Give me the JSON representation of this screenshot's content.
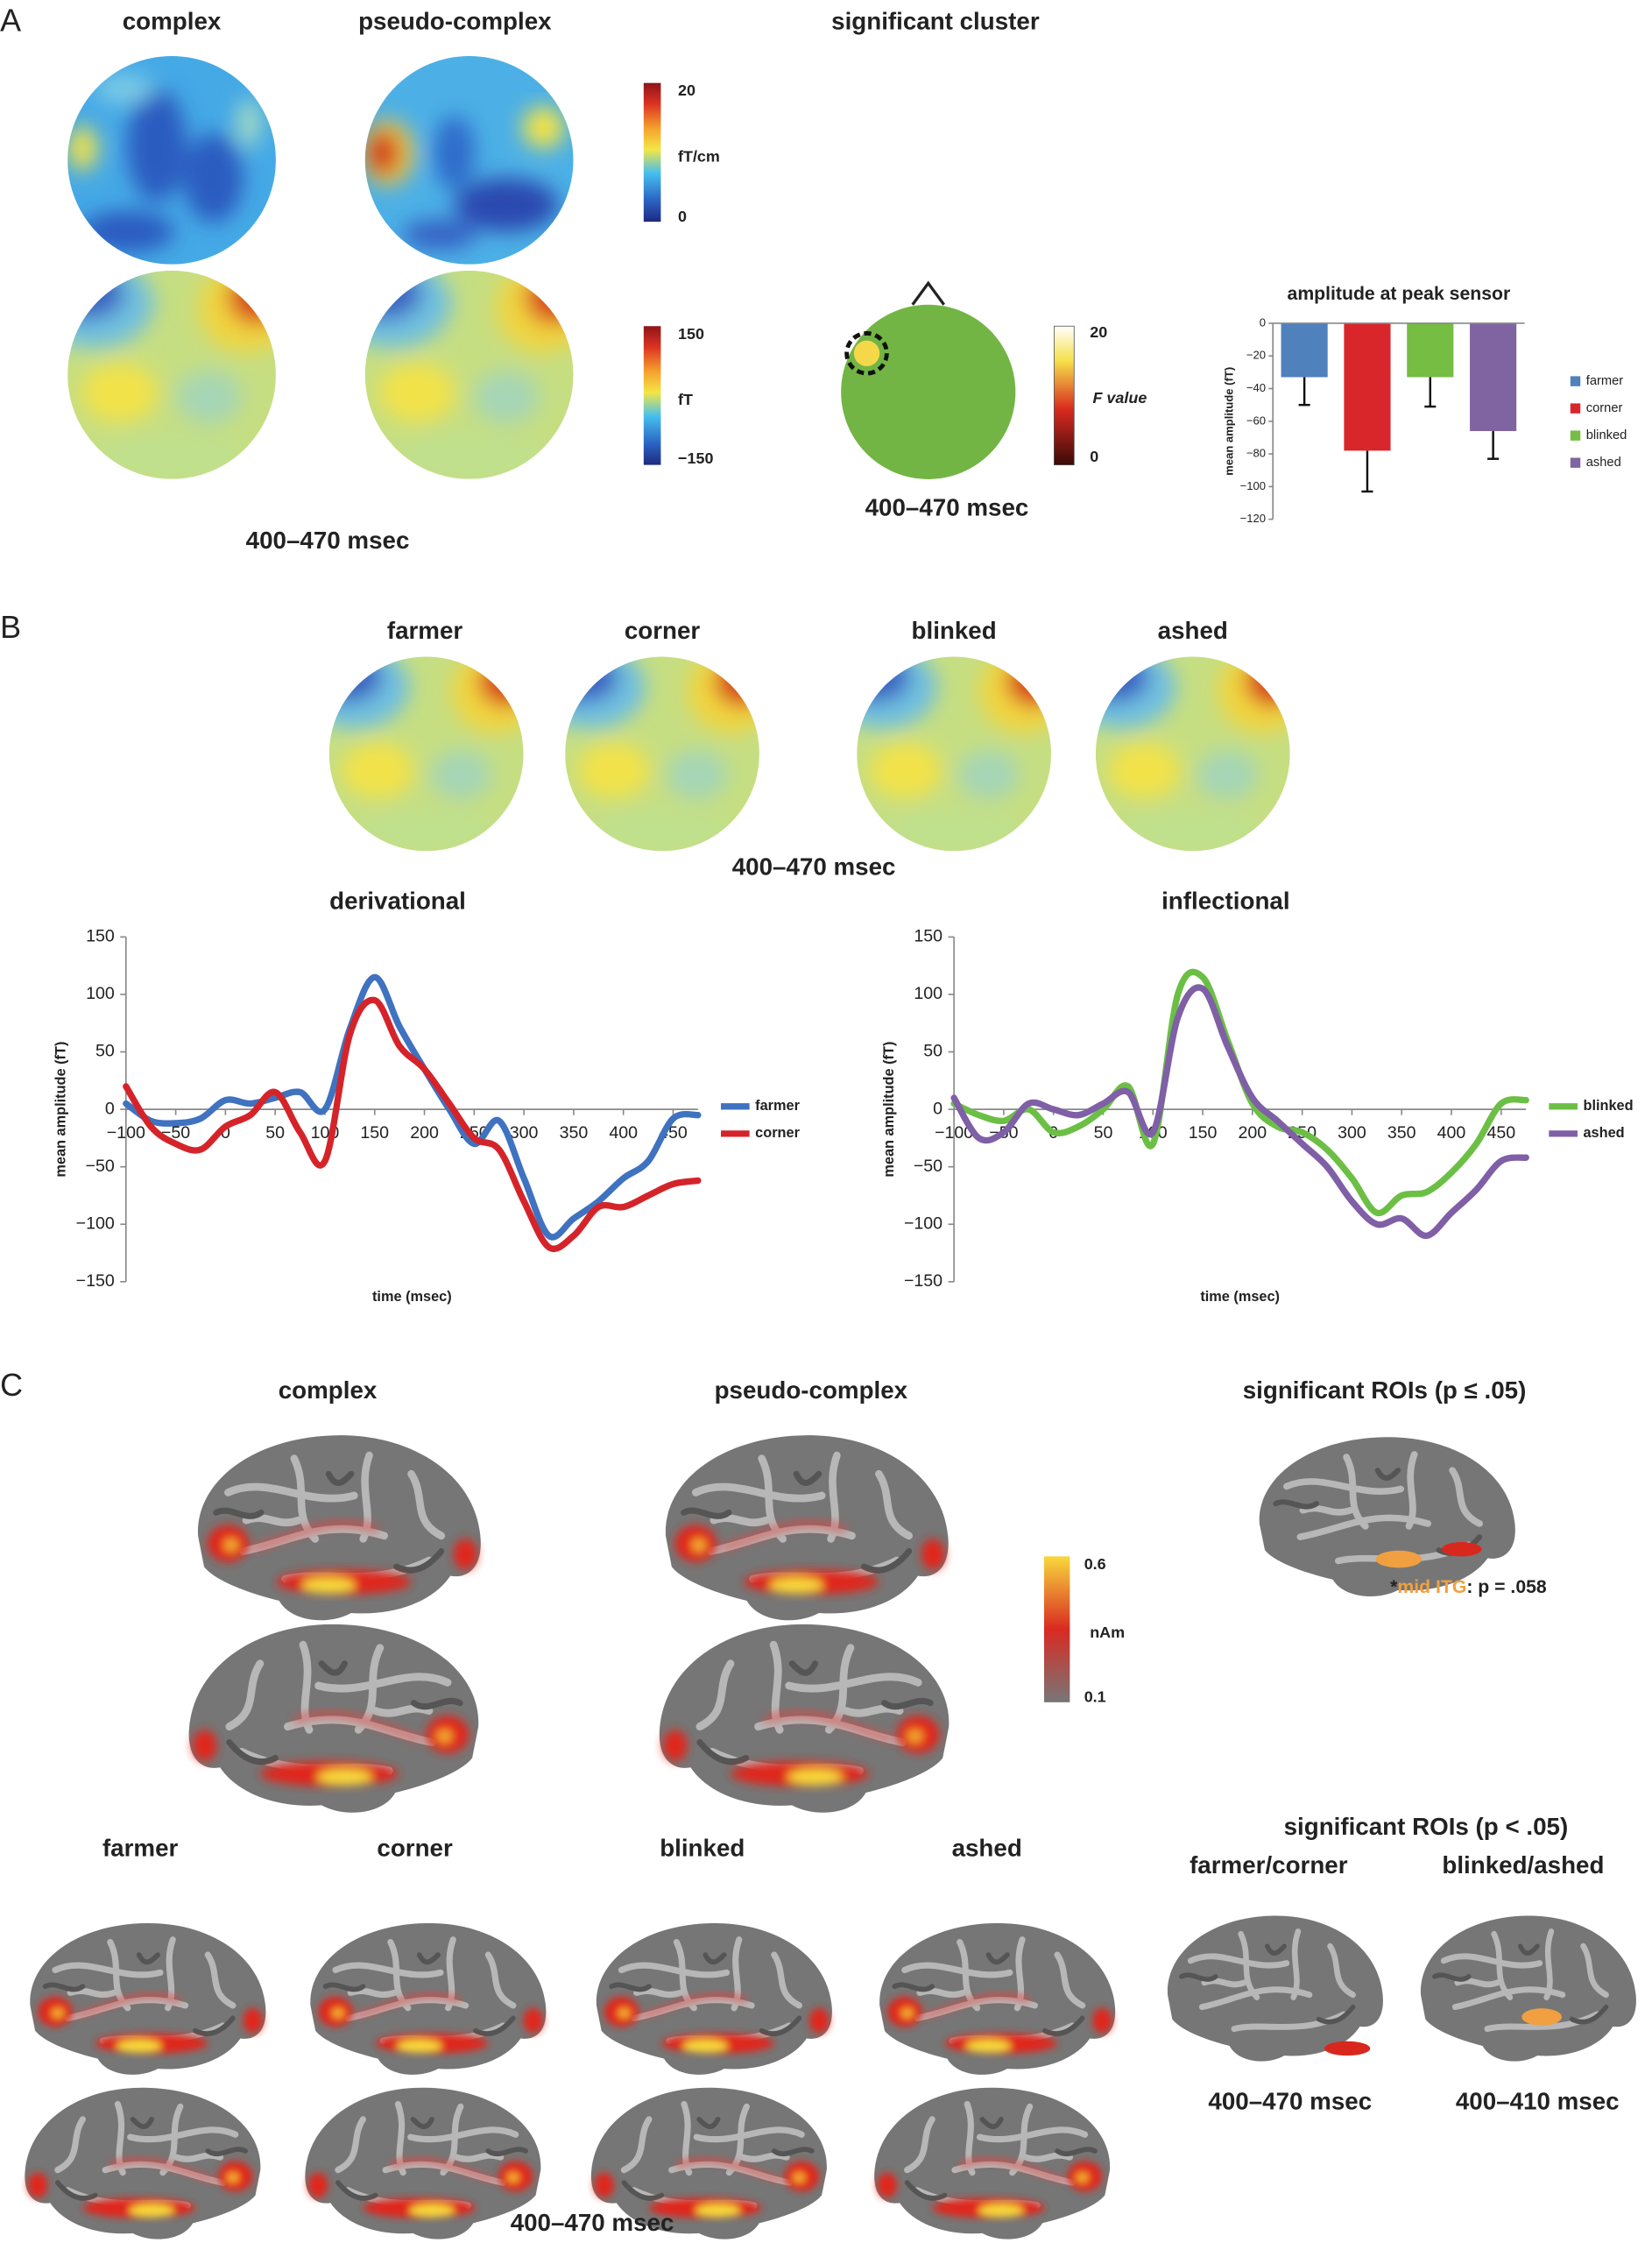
{
  "figure": {
    "panel_a": {
      "label": "A",
      "titles": [
        "complex",
        "pseudo-complex",
        "significant cluster"
      ],
      "colorbar_field": {
        "max": 20,
        "unit": "fT/cm",
        "min": 0
      },
      "colorbar_amp": {
        "max": 150,
        "unit": "fT",
        "min": {
          "value": -150,
          "label": "−150"
        }
      },
      "colorbar_f": {
        "max": 20,
        "unit": "F value",
        "min": 0
      },
      "window_left": "400–470 msec",
      "window_cluster": "400–470 msec"
    },
    "panel_b": {
      "label": "B",
      "titles": [
        "farmer",
        "corner",
        "blinked",
        "ashed"
      ],
      "window": "400–470 msec"
    },
    "panel_c": {
      "label": "C",
      "titles": [
        "complex",
        "pseudo-complex"
      ],
      "roi_title": "significant ROIs (p ≤ .05)",
      "colorbar": {
        "max": 0.6,
        "unit": "nAm",
        "min": 0.1
      },
      "roi_note": {
        "star": "*",
        "region": "mid ITG",
        "stat": ": p = .058"
      },
      "word_titles": [
        "farmer",
        "corner",
        "blinked",
        "ashed"
      ],
      "window": "400–470 msec",
      "roi2_title": "significant ROIs (p < .05)",
      "roi2_pairs": [
        "farmer/corner",
        "blinked/ashed"
      ],
      "roi2_windows": [
        "400–470 msec",
        "400–410 msec"
      ]
    }
  },
  "chart_data": [
    {
      "type": "bar",
      "title": "amplitude at peak sensor",
      "y_label": "mean amplitude (fT)",
      "categories": [
        "farmer",
        "corner",
        "blinked",
        "ashed"
      ],
      "values": [
        -33,
        -78,
        -33,
        -66
      ],
      "errors": [
        17,
        25,
        18,
        17
      ],
      "colors": [
        "#4f81bd",
        "#d9262b",
        "#76bd43",
        "#8064a2"
      ],
      "ylim": [
        -120,
        0
      ],
      "yticks": [
        0,
        {
          "value": -20,
          "label": "−20"
        },
        {
          "value": -40,
          "label": "−40"
        },
        {
          "value": -60,
          "label": "−60"
        },
        {
          "value": -80,
          "label": "−80"
        },
        {
          "value": -100,
          "label": "−100"
        },
        {
          "value": -120,
          "label": "−120"
        }
      ],
      "legend": "right"
    },
    {
      "type": "line",
      "title": "derivational",
      "x_label": "time (msec)",
      "y_label": "mean amplitude (fT)",
      "x": [
        -100,
        -75,
        -50,
        -25,
        0,
        25,
        50,
        75,
        100,
        125,
        150,
        175,
        200,
        225,
        250,
        275,
        300,
        325,
        350,
        375,
        400,
        425,
        450,
        475
      ],
      "series": [
        {
          "name": "farmer",
          "color": "#3f72c0",
          "values": [
            5,
            -10,
            -12,
            -8,
            8,
            5,
            10,
            15,
            0,
            70,
            115,
            72,
            35,
            0,
            -30,
            -10,
            -60,
            -110,
            -95,
            -80,
            -60,
            -45,
            -8,
            -5
          ]
        },
        {
          "name": "corner",
          "color": "#d4242a",
          "values": [
            20,
            -15,
            -30,
            -35,
            -15,
            -5,
            15,
            -20,
            -45,
            65,
            95,
            55,
            35,
            5,
            -25,
            -35,
            -80,
            -120,
            -110,
            -85,
            -85,
            -75,
            -65,
            -62
          ]
        }
      ],
      "xlim": [
        -100,
        475
      ],
      "ylim": [
        -150,
        150
      ],
      "xticks": [
        {
          "value": -100,
          "label": "−100"
        },
        {
          "value": -50,
          "label": "−50"
        },
        0,
        50,
        100,
        150,
        200,
        250,
        300,
        350,
        400,
        450
      ],
      "yticks": [
        150,
        100,
        50,
        0,
        {
          "value": -50,
          "label": "−50"
        },
        {
          "value": -100,
          "label": "−100"
        },
        {
          "value": -150,
          "label": "−150"
        }
      ],
      "legend": "right"
    },
    {
      "type": "line",
      "title": "inflectional",
      "x_label": "time (msec)",
      "y_label": "mean amplitude (fT)",
      "x": [
        -100,
        -75,
        -50,
        -25,
        0,
        25,
        50,
        75,
        100,
        125,
        150,
        175,
        200,
        225,
        250,
        275,
        300,
        325,
        350,
        375,
        400,
        425,
        450,
        475
      ],
      "series": [
        {
          "name": "blinked",
          "color": "#6cbf45",
          "values": [
            5,
            -5,
            -10,
            0,
            -20,
            -15,
            0,
            20,
            -30,
            100,
            115,
            60,
            5,
            -15,
            -20,
            -35,
            -60,
            -90,
            -75,
            -72,
            -55,
            -30,
            5,
            8
          ]
        },
        {
          "name": "ashed",
          "color": "#7f5fa6",
          "values": [
            10,
            -25,
            -20,
            5,
            0,
            -5,
            5,
            15,
            -20,
            80,
            105,
            55,
            10,
            -10,
            -30,
            -50,
            -80,
            -100,
            -95,
            -110,
            -90,
            -70,
            -45,
            -42
          ]
        }
      ],
      "xlim": [
        -100,
        475
      ],
      "ylim": [
        -150,
        150
      ],
      "xticks": [
        {
          "value": -100,
          "label": "−100"
        },
        {
          "value": -50,
          "label": "−50"
        },
        0,
        50,
        100,
        150,
        200,
        250,
        300,
        350,
        400,
        450
      ],
      "yticks": [
        150,
        100,
        50,
        0,
        {
          "value": -50,
          "label": "−50"
        },
        {
          "value": -100,
          "label": "−100"
        },
        {
          "value": -150,
          "label": "−150"
        }
      ],
      "legend": "right"
    }
  ]
}
